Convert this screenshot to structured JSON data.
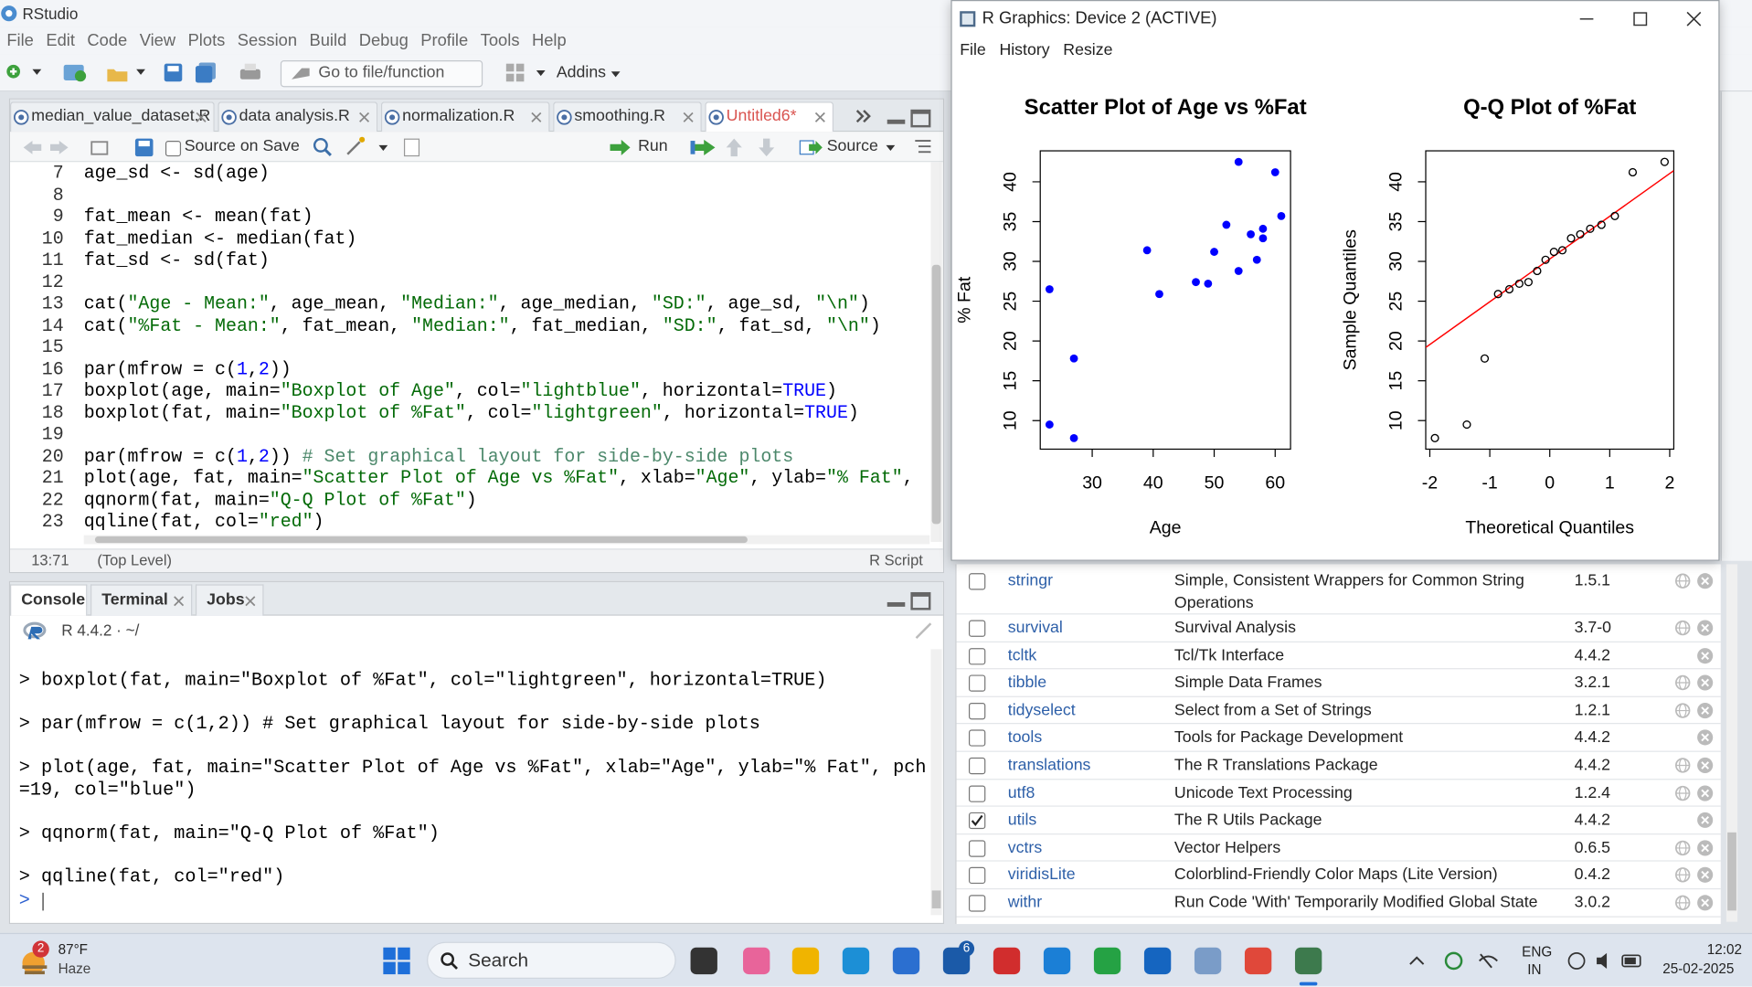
{
  "app_title": "RStudio",
  "menu": [
    "File",
    "Edit",
    "Code",
    "View",
    "Plots",
    "Session",
    "Build",
    "Debug",
    "Profile",
    "Tools",
    "Help"
  ],
  "toolbar": {
    "goto": "Go to file/function",
    "addins": "Addins"
  },
  "editor_tabs": [
    "median_value_dataset.R",
    "data analysis.R",
    "normalization.R",
    "smoothing.R",
    "Untitled6*"
  ],
  "editor_toolbar": {
    "source_on_save": "Source on Save",
    "run": "Run",
    "source": "Source"
  },
  "editor_lines": [
    {
      "number": 7,
      "code": "age_sd <- sd(age)"
    },
    {
      "number": 8
    },
    {
      "number": 9,
      "code": "fat_mean <- mean(fat)"
    },
    {
      "number": 10,
      "code": "fat_median <- median(fat)"
    },
    {
      "number": 11,
      "code": "fat_sd <- sd(fat)"
    },
    {
      "number": 12
    },
    {
      "number": 13,
      "code": "cat(\"Age - Mean:\", age_mean, \"Median:\", age_median, \"SD:\", age_sd, \"\\n\")"
    },
    {
      "number": 14,
      "code": "cat(\"%Fat - Mean:\", fat_mean, \"Median:\", fat_median, \"SD:\", fat_sd, \"\\n\")"
    },
    {
      "number": 15
    },
    {
      "number": 16,
      "code": "par(mfrow = c(1,2))"
    },
    {
      "number": 17,
      "code": "boxplot(age, main=\"Boxplot of Age\", col=\"lightblue\", horizontal=TRUE)"
    },
    {
      "number": 18,
      "code": "boxplot(fat, main=\"Boxplot of %Fat\", col=\"lightgreen\", horizontal=TRUE)"
    },
    {
      "number": 19
    },
    {
      "number": 20,
      "code": "par(mfrow = c(1,2)) # Set graphical layout for side-by-side plots"
    },
    {
      "number": 21,
      "code": "plot(age, fat, main=\"Scatter Plot of Age vs %Fat\", xlab=\"Age\", ylab=\"% Fat\","
    },
    {
      "number": 22,
      "code": "qqnorm(fat, main=\"Q-Q Plot of %Fat\")"
    },
    {
      "number": 23,
      "code": "qqline(fat, col=\"red\")"
    }
  ],
  "status": {
    "position": "13:71",
    "scope": "(Top Level)",
    "filetype": "R Script"
  },
  "console_tabs": [
    "Console",
    "Terminal",
    "Jobs"
  ],
  "console_path": "R 4.4.2 · ~/",
  "console_lines": [
    "> boxplot(fat, main=\"Boxplot of %Fat\", col=\"lightgreen\", horizontal=TRUE)",
    "> par(mfrow = c(1,2)) # Set graphical layout for side-by-side plots",
    "> plot(age, fat, main=\"Scatter Plot of Age vs %Fat\", xlab=\"Age\", ylab=\"% Fat\", pch",
    "=19, col=\"blue\")",
    "> qqnorm(fat, main=\"Q-Q Plot of %Fat\")",
    "> qqline(fat, col=\"red\")",
    ">"
  ],
  "graphics_window": {
    "title": "R Graphics: Device 2 (ACTIVE)",
    "menu": [
      "File",
      "History",
      "Resize"
    ]
  },
  "chart_data": [
    {
      "type": "scatter",
      "title": "Scatter Plot of Age vs %Fat",
      "xlabel": "Age",
      "ylabel": "% Fat",
      "x": [
        23,
        23,
        27,
        27,
        39,
        41,
        47,
        49,
        50,
        52,
        54,
        54,
        56,
        57,
        58,
        58,
        60,
        61
      ],
      "series": [
        {
          "values": [
            9.5,
            26.5,
            7.8,
            17.8,
            31.4,
            25.9,
            27.4,
            27.2,
            31.2,
            34.6,
            42.5,
            28.8,
            33.4,
            30.2,
            34.1,
            32.9,
            41.2,
            35.7
          ],
          "color": "blue",
          "marker": "filled"
        }
      ],
      "xlim": [
        21.48,
        62.52
      ],
      "ylim": [
        6.41,
        43.89
      ],
      "xticks": [
        30,
        40,
        50,
        60
      ],
      "yticks": [
        10,
        15,
        20,
        25,
        30,
        35,
        40
      ]
    },
    {
      "type": "scatter",
      "title": "Q-Q Plot of %Fat",
      "xlabel": "Theoretical Quantiles",
      "ylabel": "Sample Quantiles",
      "x": [
        -1.915,
        -1.383,
        -1.085,
        -0.862,
        -0.674,
        -0.508,
        -0.355,
        -0.21,
        -0.07,
        0.07,
        0.21,
        0.355,
        0.508,
        0.674,
        0.862,
        1.085,
        1.383,
        1.915
      ],
      "series": [
        {
          "values": [
            7.8,
            9.5,
            17.8,
            25.9,
            26.5,
            27.2,
            27.4,
            28.8,
            30.2,
            31.2,
            31.4,
            32.9,
            33.4,
            34.1,
            34.6,
            35.7,
            41.2,
            42.5
          ],
          "color": "black",
          "marker": "open"
        }
      ],
      "qqline": {
        "intercept": 30.3,
        "slope": 5.37,
        "color": "red"
      },
      "xlim": [
        -2.068,
        2.068
      ],
      "ylim": [
        6.41,
        43.89
      ],
      "xticks": [
        -2,
        -1,
        0,
        1,
        2
      ],
      "yticks": [
        10,
        15,
        20,
        25,
        30,
        35,
        40
      ]
    }
  ],
  "packages": [
    {
      "name": "stringr",
      "description": "Simple, Consistent Wrappers for Common String Operations",
      "version": "1.5.1",
      "checked": false
    },
    {
      "name": "survival",
      "description": "Survival Analysis",
      "version": "3.7-0",
      "checked": false
    },
    {
      "name": "tcltk",
      "description": "Tcl/Tk Interface",
      "version": "4.4.2",
      "checked": false
    },
    {
      "name": "tibble",
      "description": "Simple Data Frames",
      "version": "3.2.1",
      "checked": false
    },
    {
      "name": "tidyselect",
      "description": "Select from a Set of Strings",
      "version": "1.2.1",
      "checked": false
    },
    {
      "name": "tools",
      "description": "Tools for Package Development",
      "version": "4.4.2",
      "checked": false
    },
    {
      "name": "translations",
      "description": "The R Translations Package",
      "version": "4.4.2",
      "checked": false
    },
    {
      "name": "utf8",
      "description": "Unicode Text Processing",
      "version": "1.2.4",
      "checked": false
    },
    {
      "name": "utils",
      "description": "The R Utils Package",
      "version": "4.4.2",
      "checked": true
    },
    {
      "name": "vctrs",
      "description": "Vector Helpers",
      "version": "0.6.5",
      "checked": false
    },
    {
      "name": "viridisLite",
      "description": "Colorblind-Friendly Color Maps (Lite Version)",
      "version": "0.4.2",
      "checked": false
    },
    {
      "name": "withr",
      "description": "Run Code 'With' Temporarily Modified Global State",
      "version": "3.0.2",
      "checked": false
    }
  ],
  "taskbar": {
    "weather_badge": 2,
    "temperature": "87°F",
    "condition": "Haze",
    "search": "Search",
    "app_badge": 6,
    "language": "ENG",
    "region": "IN",
    "time": "12:02",
    "date": "25-02-2025"
  }
}
